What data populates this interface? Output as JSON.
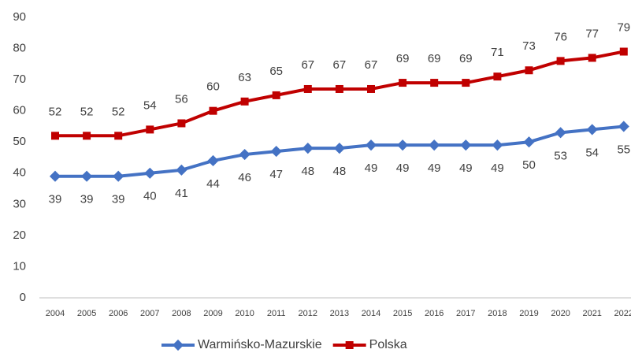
{
  "chart_data": {
    "type": "line",
    "categories": [
      "2004",
      "2005",
      "2006",
      "2007",
      "2008",
      "2009",
      "2010",
      "2011",
      "2012",
      "2013",
      "2014",
      "2015",
      "2016",
      "2017",
      "2018",
      "2019",
      "2020",
      "2021",
      "2022"
    ],
    "series": [
      {
        "name": "Warmińsko-Mazurskie",
        "color": "#4472c4",
        "values": [
          39,
          39,
          39,
          40,
          41,
          44,
          46,
          47,
          48,
          48,
          49,
          49,
          49,
          49,
          49,
          50,
          53,
          54,
          55
        ]
      },
      {
        "name": "Polska",
        "color": "#c00000",
        "values": [
          52,
          52,
          52,
          54,
          56,
          60,
          63,
          65,
          67,
          67,
          67,
          69,
          69,
          69,
          71,
          73,
          76,
          77,
          79
        ]
      }
    ],
    "ylim": [
      0,
      90
    ],
    "yticks": [
      0,
      10,
      20,
      30,
      40,
      50,
      60,
      70,
      80,
      90
    ],
    "grid": false,
    "legend": "bottom"
  }
}
